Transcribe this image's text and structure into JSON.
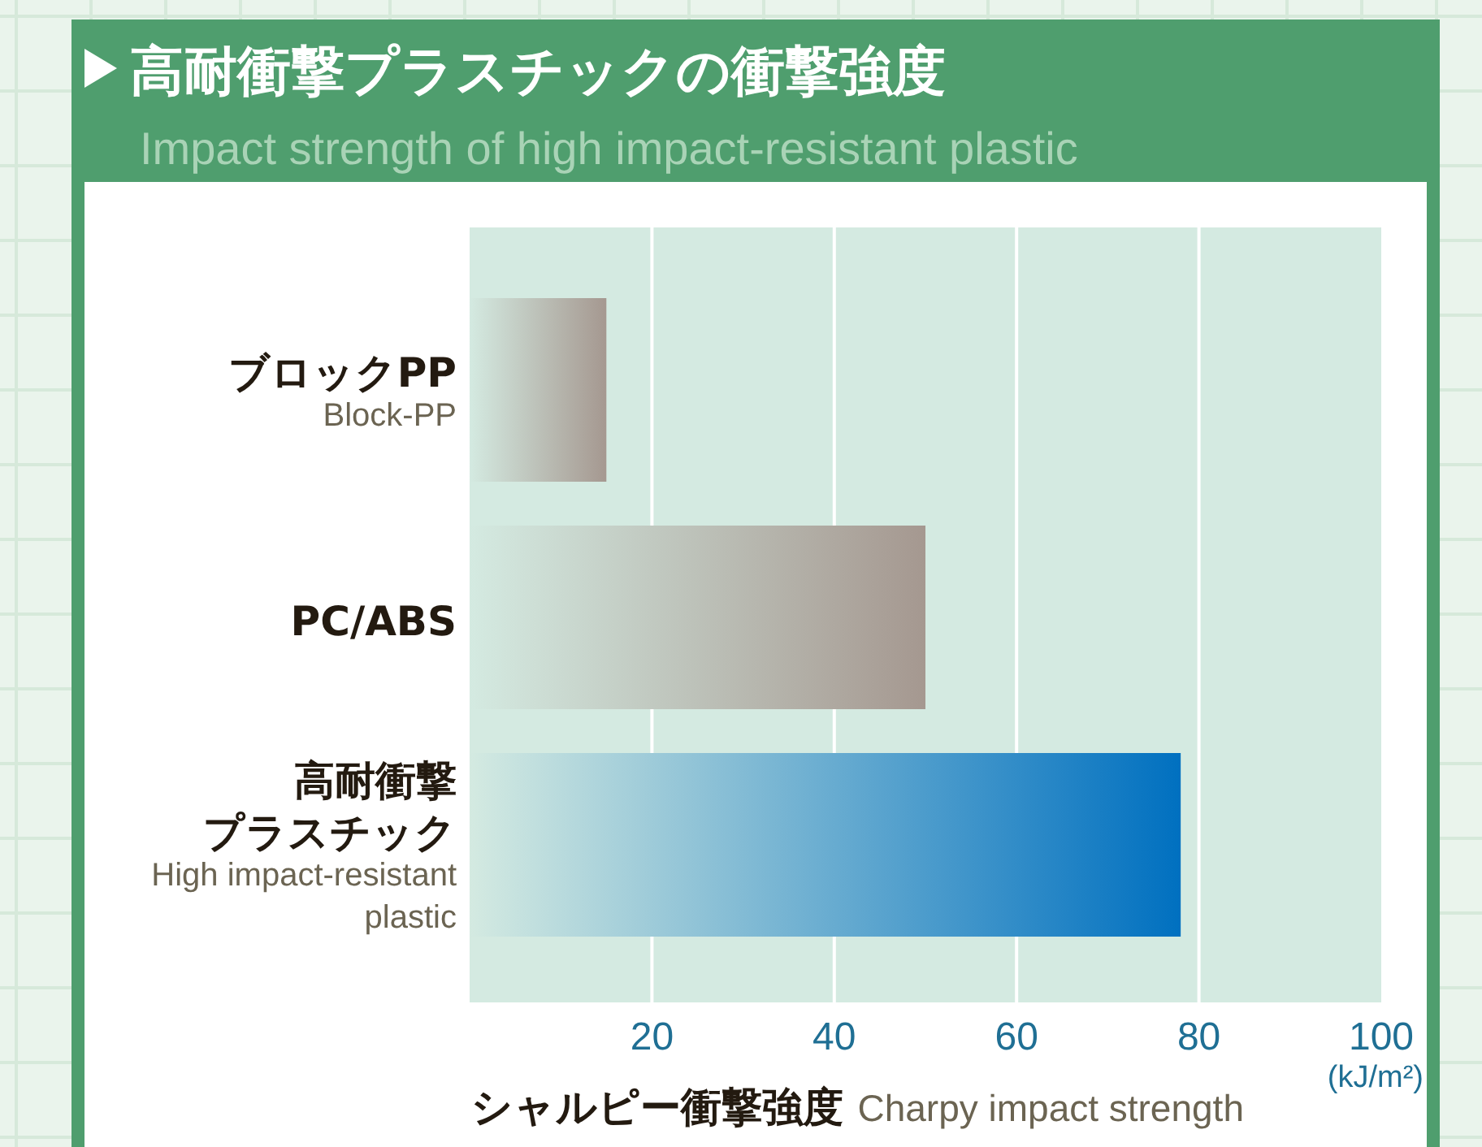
{
  "chart_data": {
    "type": "bar",
    "orientation": "horizontal",
    "title": "高耐衝撃プラスチックの衝撃強度",
    "subtitle": "Impact strength of high impact-resistant plastic",
    "categories": [
      "ブロックPP\nBlock-PP",
      "PC/ABS",
      "高耐衝撃プラスチック\nHigh impact-resistant\nplastic"
    ],
    "values": [
      15,
      50,
      78
    ],
    "colors": [
      "#a59890",
      "#a59890",
      "#0070c0"
    ],
    "xlabel": "シャルピー衝撃強度 Charpy impact strength",
    "annotations": [
      "(kJ/m²)"
    ],
    "xlim": [
      0,
      100
    ],
    "xticks": [
      20,
      40,
      60,
      80,
      100
    ],
    "grid": "x"
  }
}
